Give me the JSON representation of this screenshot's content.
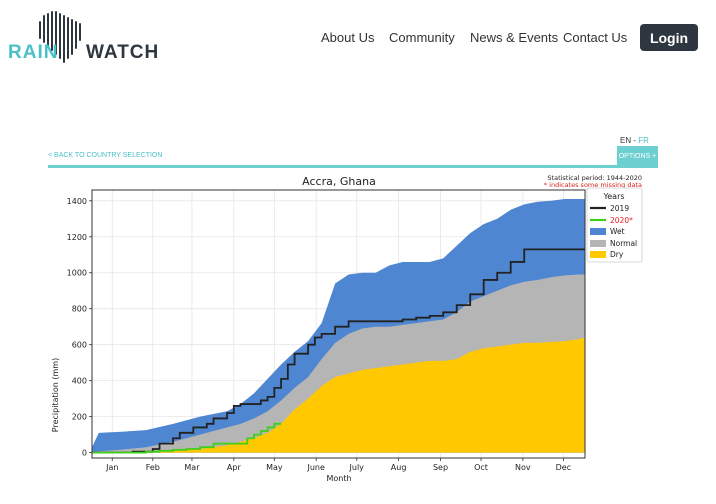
{
  "header": {
    "logo_left": "RAIN",
    "logo_right": "WATCH",
    "nav": [
      "About Us",
      "Community",
      "News & Events",
      "Contact Us"
    ],
    "login": "Login"
  },
  "lang": {
    "en": "EN",
    "sep": "-",
    "fr": "FR"
  },
  "back_link": "< BACK TO COUNTRY SELECTION",
  "options_label": "OPTIONS +",
  "colors": {
    "teal": "#4bc0c8",
    "dark": "#2e3740",
    "wet": "#4f86d1",
    "normal": "#b5b5b5",
    "dry": "#ffc800",
    "y2019": "#222222",
    "y2020": "#3ed018"
  },
  "chart_data": {
    "type": "area",
    "title": "Accra, Ghana",
    "stat_period": "Statistical period: 1944-2020",
    "missing_note": "* indicates some missing data",
    "xlabel": "Month",
    "ylabel": "Precipitation (mm)",
    "ylim": [
      -30,
      1460
    ],
    "xlim": [
      0,
      365
    ],
    "x_ticks": [
      {
        "label": "Jan",
        "day": 15
      },
      {
        "label": "Feb",
        "day": 45
      },
      {
        "label": "Mar",
        "day": 74
      },
      {
        "label": "Apr",
        "day": 105
      },
      {
        "label": "May",
        "day": 135
      },
      {
        "label": "June",
        "day": 166
      },
      {
        "label": "July",
        "day": 196
      },
      {
        "label": "Aug",
        "day": 227
      },
      {
        "label": "Sep",
        "day": 258
      },
      {
        "label": "Oct",
        "day": 288
      },
      {
        "label": "Nov",
        "day": 319
      },
      {
        "label": "Dec",
        "day": 349
      }
    ],
    "y_ticks": [
      0,
      200,
      400,
      600,
      800,
      1000,
      1200,
      1400
    ],
    "grid": true,
    "legend_title": "Years",
    "legend_position": "top-right",
    "series": [
      {
        "name": "Wet",
        "x": [
          0,
          5,
          20,
          40,
          60,
          80,
          100,
          110,
          120,
          130,
          140,
          150,
          160,
          170,
          175,
          180,
          190,
          200,
          210,
          220,
          230,
          240,
          250,
          260,
          270,
          280,
          290,
          300,
          310,
          320,
          330,
          340,
          350,
          360,
          365
        ],
        "y": [
          30,
          110,
          115,
          125,
          160,
          200,
          230,
          270,
          330,
          410,
          490,
          560,
          620,
          720,
          830,
          940,
          990,
          1000,
          1000,
          1040,
          1060,
          1060,
          1060,
          1080,
          1150,
          1220,
          1270,
          1300,
          1350,
          1380,
          1395,
          1400,
          1410,
          1410,
          1410
        ]
      },
      {
        "name": "Normal",
        "x": [
          0,
          20,
          40,
          60,
          80,
          100,
          110,
          120,
          130,
          140,
          150,
          160,
          170,
          180,
          190,
          200,
          210,
          220,
          230,
          240,
          250,
          260,
          270,
          280,
          290,
          300,
          310,
          320,
          330,
          340,
          350,
          360,
          365
        ],
        "y": [
          5,
          15,
          30,
          60,
          100,
          140,
          160,
          190,
          230,
          290,
          360,
          420,
          520,
          610,
          660,
          690,
          700,
          700,
          710,
          720,
          730,
          740,
          780,
          840,
          870,
          900,
          930,
          950,
          960,
          975,
          985,
          990,
          990
        ]
      },
      {
        "name": "Dry",
        "x": [
          0,
          20,
          40,
          60,
          80,
          100,
          110,
          120,
          130,
          140,
          150,
          160,
          170,
          180,
          190,
          200,
          210,
          220,
          230,
          240,
          250,
          260,
          270,
          280,
          290,
          300,
          310,
          320,
          330,
          340,
          350,
          360,
          365
        ],
        "y": [
          0,
          2,
          5,
          10,
          20,
          40,
          60,
          80,
          110,
          160,
          240,
          300,
          370,
          420,
          440,
          460,
          470,
          480,
          490,
          500,
          510,
          510,
          520,
          560,
          580,
          590,
          600,
          610,
          610,
          615,
          620,
          630,
          640
        ]
      },
      {
        "name": "2019",
        "x": [
          0,
          25,
          30,
          45,
          50,
          60,
          65,
          75,
          85,
          90,
          100,
          105,
          110,
          120,
          125,
          130,
          135,
          140,
          145,
          150,
          160,
          165,
          170,
          180,
          190,
          200,
          210,
          220,
          230,
          240,
          250,
          260,
          270,
          280,
          290,
          300,
          310,
          320,
          330,
          340,
          350,
          360,
          365
        ],
        "y": [
          0,
          0,
          5,
          20,
          50,
          80,
          110,
          140,
          160,
          190,
          220,
          260,
          270,
          270,
          290,
          310,
          360,
          410,
          490,
          550,
          600,
          640,
          660,
          700,
          730,
          730,
          730,
          730,
          740,
          750,
          760,
          780,
          820,
          880,
          960,
          1000,
          1060,
          1130,
          1130,
          1130,
          1130,
          1130,
          1130
        ]
      },
      {
        "name": "2020*",
        "x": [
          0,
          30,
          40,
          50,
          60,
          70,
          80,
          90,
          100,
          110,
          115,
          120,
          125,
          130,
          135,
          140
        ],
        "y": [
          0,
          0,
          5,
          10,
          15,
          20,
          30,
          50,
          50,
          50,
          80,
          100,
          120,
          140,
          160,
          160
        ]
      }
    ]
  }
}
